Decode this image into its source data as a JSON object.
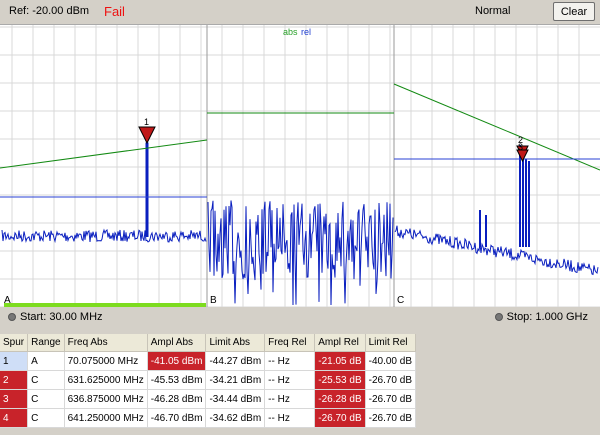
{
  "header": {
    "ref_text": "Ref:  -20.00 dBm",
    "status": "Fail",
    "mode": "Normal",
    "clear_label": "Clear"
  },
  "plot": {
    "legend_abs": "abs",
    "legend_rel": "rel",
    "legend_abs_color": "#2aa12a",
    "legend_rel_color": "#1f3fd0",
    "panels": [
      "A",
      "B",
      "C"
    ],
    "marker_labels": [
      "1",
      "2",
      "3"
    ],
    "trace_color": "#0a1fbf",
    "abs_limit_color": "#138a13",
    "rel_limit_color": "#2942d6",
    "marker_color": "#c01818"
  },
  "footer": {
    "start_label": "Start: 30.00 MHz",
    "stop_label": "Stop: 1.000 GHz"
  },
  "table": {
    "headers": [
      "Spur",
      "Range",
      "Freq Abs",
      "Ampl Abs",
      "Limit Abs",
      "Freq Rel",
      "Ampl Rel",
      "Limit Rel"
    ],
    "rows": [
      [
        "1",
        "A",
        "70.075000 MHz",
        "-41.05 dBm",
        "-44.27 dBm",
        "-- Hz",
        "-21.05 dB",
        "-40.00 dB"
      ],
      [
        "2",
        "C",
        "631.625000 MHz",
        "-45.53 dBm",
        "-34.21 dBm",
        "-- Hz",
        "-25.53 dB",
        "-26.70 dB"
      ],
      [
        "3",
        "C",
        "636.875000 MHz",
        "-46.28 dBm",
        "-34.44 dBm",
        "-- Hz",
        "-26.28 dB",
        "-26.70 dB"
      ],
      [
        "4",
        "C",
        "641.250000 MHz",
        "-46.70 dBm",
        "-34.62 dBm",
        "-- Hz",
        "-26.70 dB",
        "-26.70 dB"
      ]
    ],
    "fail_abs": [
      true,
      false,
      false,
      false
    ],
    "fail_rel": [
      true,
      true,
      true,
      true
    ]
  }
}
